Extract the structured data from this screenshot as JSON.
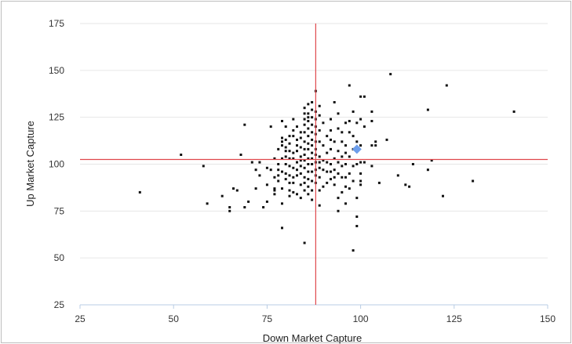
{
  "chart_data": {
    "type": "scatter",
    "title": "",
    "xlabel": "Down Market Capture",
    "ylabel": "Up Market Capture",
    "xlim": [
      25,
      150
    ],
    "ylim": [
      25,
      175
    ],
    "xticks": [
      25,
      50,
      75,
      100,
      125,
      150
    ],
    "yticks": [
      25,
      50,
      75,
      100,
      125,
      150,
      175
    ],
    "grid": "horizontal",
    "reference_lines": {
      "x": 88,
      "y": 102.5,
      "color": "#e0474c"
    },
    "colors": {
      "points": "#111111",
      "highlight": "#6d9eeb",
      "grid": "#e6e6e6",
      "axis": "#b8cce4"
    },
    "highlight_point": {
      "x": 99,
      "y": 108
    },
    "series": [
      {
        "points": [
          [
            41,
            85
          ],
          [
            52,
            105
          ],
          [
            58,
            99
          ],
          [
            59,
            79
          ],
          [
            63,
            83
          ],
          [
            65,
            77
          ],
          [
            65,
            75
          ],
          [
            66,
            87
          ],
          [
            67,
            86
          ],
          [
            68,
            105
          ],
          [
            69,
            121
          ],
          [
            69,
            77
          ],
          [
            70,
            80
          ],
          [
            71,
            101
          ],
          [
            72,
            97
          ],
          [
            72,
            87
          ],
          [
            73,
            101
          ],
          [
            73,
            94
          ],
          [
            74,
            77
          ],
          [
            75,
            89
          ],
          [
            75,
            98
          ],
          [
            75,
            80
          ],
          [
            76,
            120
          ],
          [
            76,
            97
          ],
          [
            77,
            103
          ],
          [
            77,
            93
          ],
          [
            77,
            87
          ],
          [
            77,
            86
          ],
          [
            77,
            84
          ],
          [
            78,
            108
          ],
          [
            78,
            97
          ],
          [
            78,
            94
          ],
          [
            78,
            91
          ],
          [
            78,
            100
          ],
          [
            79,
            114
          ],
          [
            79,
            112
          ],
          [
            79,
            110
          ],
          [
            79,
            103
          ],
          [
            79,
            96
          ],
          [
            79,
            123
          ],
          [
            79,
            87
          ],
          [
            79,
            79
          ],
          [
            79,
            66
          ],
          [
            80,
            120
          ],
          [
            80,
            113
          ],
          [
            80,
            109
          ],
          [
            80,
            107
          ],
          [
            80,
            104
          ],
          [
            80,
            100
          ],
          [
            80,
            95
          ],
          [
            80,
            92
          ],
          [
            81,
            115
          ],
          [
            81,
            111
          ],
          [
            81,
            107
          ],
          [
            81,
            103
          ],
          [
            81,
            99
          ],
          [
            81,
            94
          ],
          [
            81,
            90
          ],
          [
            81,
            86
          ],
          [
            81,
            83
          ],
          [
            82,
            124
          ],
          [
            82,
            118
          ],
          [
            82,
            115
          ],
          [
            82,
            106
          ],
          [
            82,
            103
          ],
          [
            82,
            98
          ],
          [
            82,
            93
          ],
          [
            82,
            90
          ],
          [
            82,
            85
          ],
          [
            83,
            120
          ],
          [
            83,
            113
          ],
          [
            83,
            110
          ],
          [
            83,
            107
          ],
          [
            83,
            101
          ],
          [
            83,
            97
          ],
          [
            83,
            94
          ],
          [
            83,
            84
          ],
          [
            84,
            117
          ],
          [
            84,
            114
          ],
          [
            84,
            109
          ],
          [
            84,
            104
          ],
          [
            84,
            102
          ],
          [
            84,
            99
          ],
          [
            84,
            95
          ],
          [
            84,
            89
          ],
          [
            84,
            82
          ],
          [
            85,
            130
          ],
          [
            85,
            127
          ],
          [
            85,
            124
          ],
          [
            85,
            121
          ],
          [
            85,
            117
          ],
          [
            85,
            112
          ],
          [
            85,
            108
          ],
          [
            85,
            105
          ],
          [
            85,
            102
          ],
          [
            85,
            98
          ],
          [
            85,
            93
          ],
          [
            85,
            90
          ],
          [
            85,
            86
          ],
          [
            85,
            58
          ],
          [
            86,
            132
          ],
          [
            86,
            127
          ],
          [
            86,
            125
          ],
          [
            86,
            123
          ],
          [
            86,
            119
          ],
          [
            86,
            115
          ],
          [
            86,
            111
          ],
          [
            86,
            108
          ],
          [
            86,
            103
          ],
          [
            86,
            100
          ],
          [
            86,
            96
          ],
          [
            86,
            92
          ],
          [
            86,
            88
          ],
          [
            86,
            84
          ],
          [
            87,
            133
          ],
          [
            87,
            129
          ],
          [
            87,
            125
          ],
          [
            87,
            121
          ],
          [
            87,
            117
          ],
          [
            87,
            113
          ],
          [
            87,
            110
          ],
          [
            87,
            106
          ],
          [
            87,
            103
          ],
          [
            87,
            100
          ],
          [
            87,
            96
          ],
          [
            87,
            91
          ],
          [
            87,
            86
          ],
          [
            87,
            81
          ],
          [
            88,
            139
          ],
          [
            88,
            128
          ],
          [
            88,
            124
          ],
          [
            88,
            120
          ],
          [
            88,
            116
          ],
          [
            88,
            112
          ],
          [
            88,
            108
          ],
          [
            88,
            105
          ],
          [
            88,
            101
          ],
          [
            88,
            97
          ],
          [
            88,
            94
          ],
          [
            88,
            90
          ],
          [
            89,
            131
          ],
          [
            89,
            126
          ],
          [
            89,
            118
          ],
          [
            89,
            112
          ],
          [
            89,
            104
          ],
          [
            89,
            101
          ],
          [
            89,
            98
          ],
          [
            89,
            93
          ],
          [
            89,
            86
          ],
          [
            89,
            78
          ],
          [
            90,
            122
          ],
          [
            90,
            110
          ],
          [
            90,
            102
          ],
          [
            90,
            97
          ],
          [
            90,
            88
          ],
          [
            91,
            115
          ],
          [
            91,
            106
          ],
          [
            91,
            101
          ],
          [
            91,
            96
          ],
          [
            91,
            90
          ],
          [
            92,
            124
          ],
          [
            92,
            118
          ],
          [
            92,
            113
          ],
          [
            92,
            108
          ],
          [
            92,
            100
          ],
          [
            92,
            96
          ],
          [
            92,
            92
          ],
          [
            93,
            133
          ],
          [
            93,
            112
          ],
          [
            93,
            103
          ],
          [
            93,
            97
          ],
          [
            93,
            93
          ],
          [
            93,
            89
          ],
          [
            94,
            127
          ],
          [
            94,
            119
          ],
          [
            94,
            107
          ],
          [
            94,
            101
          ],
          [
            94,
            95
          ],
          [
            94,
            82
          ],
          [
            94,
            75
          ],
          [
            95,
            117
          ],
          [
            95,
            112
          ],
          [
            95,
            104
          ],
          [
            95,
            99
          ],
          [
            95,
            93
          ],
          [
            95,
            85
          ],
          [
            96,
            122
          ],
          [
            96,
            110
          ],
          [
            96,
            106
          ],
          [
            96,
            100
          ],
          [
            96,
            93
          ],
          [
            96,
            88
          ],
          [
            96,
            79
          ],
          [
            97,
            142
          ],
          [
            97,
            123
          ],
          [
            97,
            117
          ],
          [
            97,
            104
          ],
          [
            97,
            95
          ],
          [
            97,
            87
          ],
          [
            98,
            128
          ],
          [
            98,
            115
          ],
          [
            98,
            108
          ],
          [
            98,
            99
          ],
          [
            98,
            91
          ],
          [
            98,
            54
          ],
          [
            99,
            122
          ],
          [
            99,
            112
          ],
          [
            99,
            100
          ],
          [
            99,
            82
          ],
          [
            99,
            72
          ],
          [
            99,
            67
          ],
          [
            100,
            136
          ],
          [
            100,
            124
          ],
          [
            100,
            110
          ],
          [
            100,
            101
          ],
          [
            100,
            95
          ],
          [
            100,
            91
          ],
          [
            100,
            89
          ],
          [
            101,
            136
          ],
          [
            101,
            120
          ],
          [
            101,
            101
          ],
          [
            103,
            128
          ],
          [
            103,
            123
          ],
          [
            103,
            110
          ],
          [
            103,
            99
          ],
          [
            104,
            112
          ],
          [
            104,
            110
          ],
          [
            105,
            90
          ],
          [
            107,
            113
          ],
          [
            108,
            148
          ],
          [
            110,
            94
          ],
          [
            112,
            89
          ],
          [
            113,
            88
          ],
          [
            114,
            100
          ],
          [
            118,
            97
          ],
          [
            118,
            129
          ],
          [
            119,
            102
          ],
          [
            122,
            83
          ],
          [
            123,
            142
          ],
          [
            130,
            91
          ],
          [
            141,
            128
          ]
        ]
      }
    ]
  }
}
